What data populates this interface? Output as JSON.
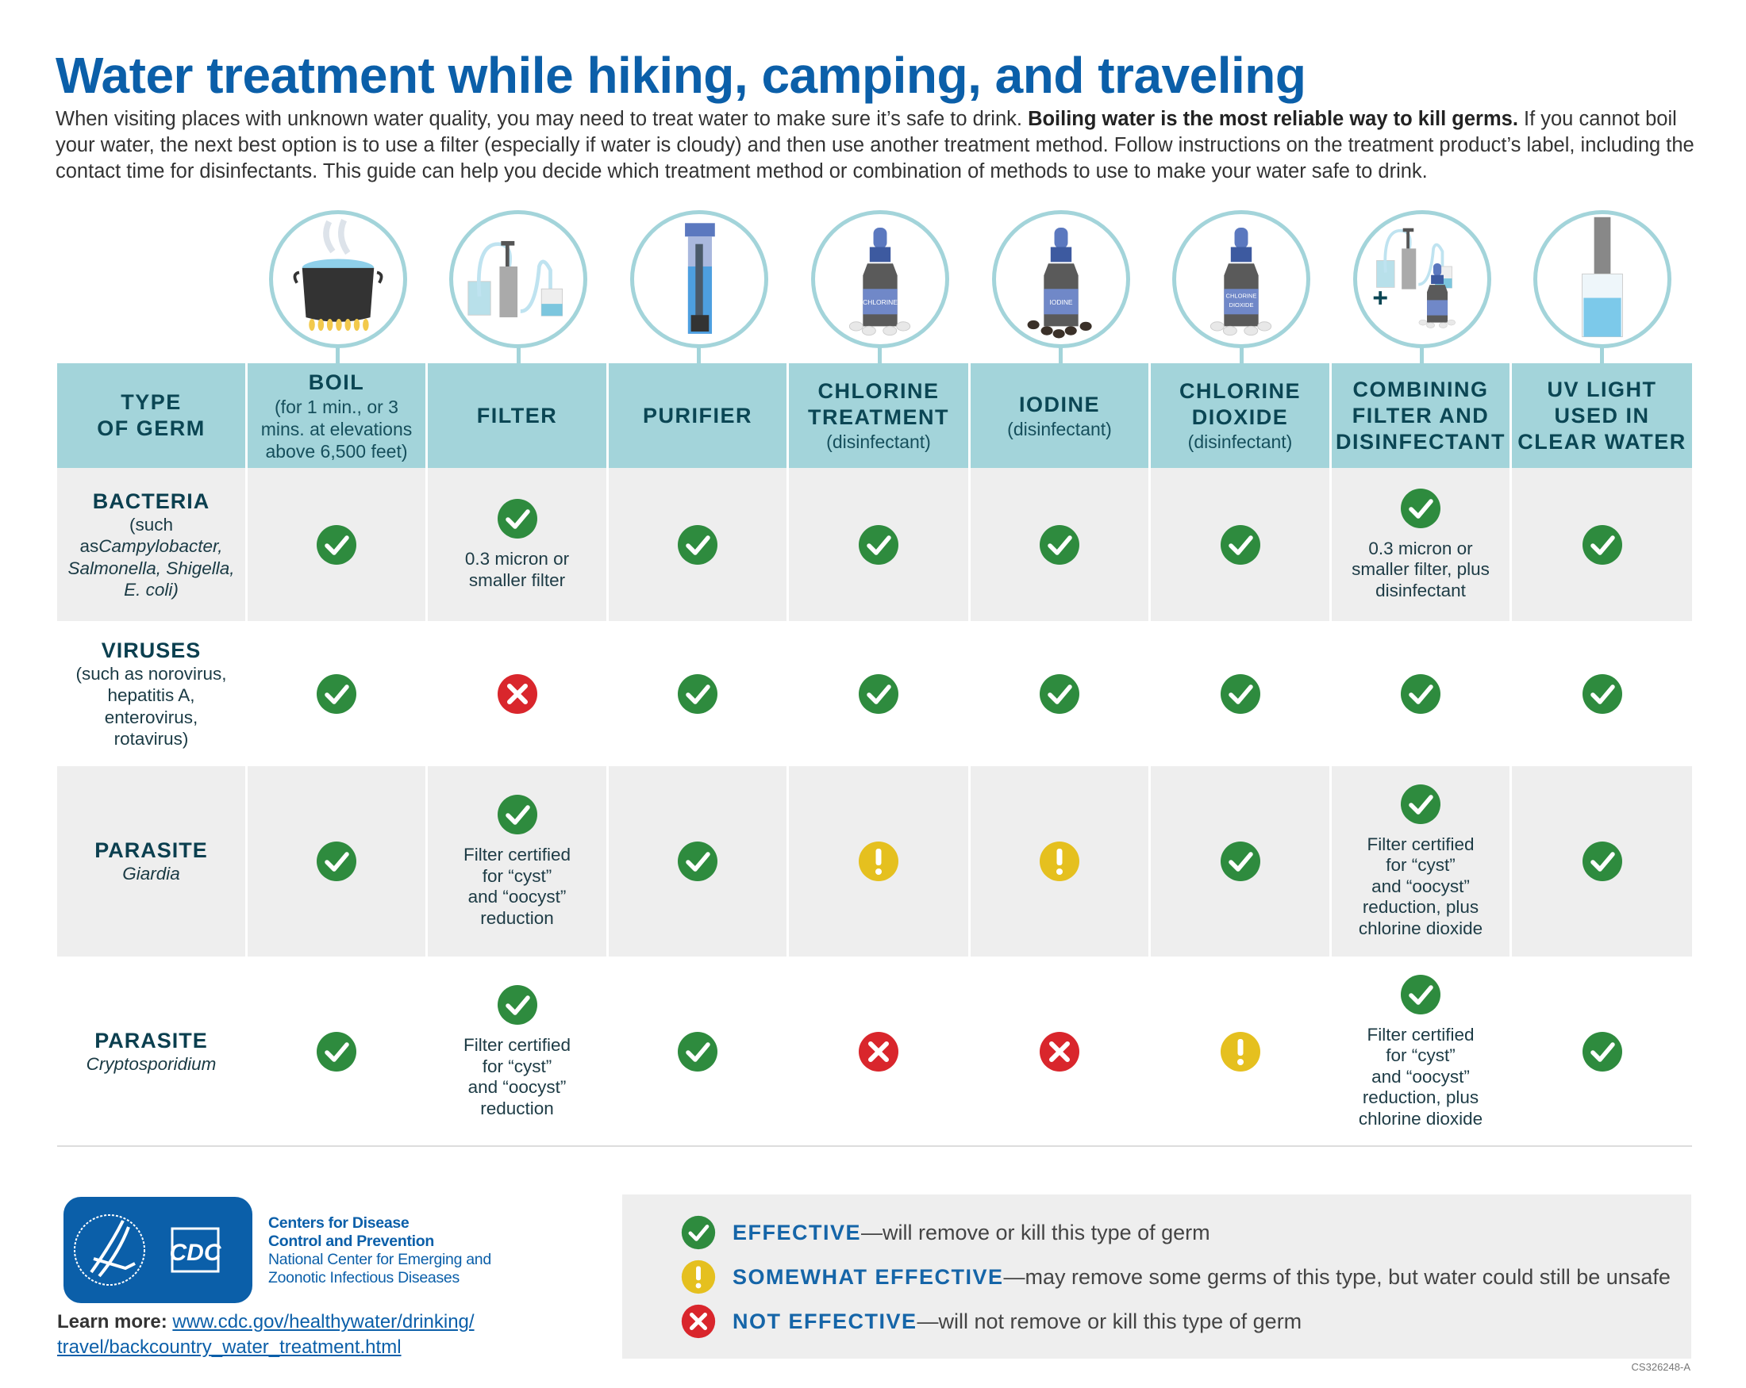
{
  "title": "Water treatment while hiking, camping, and traveling",
  "intro": {
    "text1": "When visiting places with unknown water quality, you may need to treat water to make sure it’s safe to drink. ",
    "bold": "Boiling water is the most reliable way to kill germs.",
    "text2": " If you cannot boil your water, the next best option is to use a filter (especially if water is cloudy) and then use another treatment method. Follow instructions on the treatment product’s label, including the contact time for disinfectants. This guide can help you decide which treatment method or combination of methods to use to make your water safe to drink."
  },
  "colors": {
    "title_blue": "#0b5fa9",
    "header_teal": "#a3d4da",
    "effective": "#2e8b3e",
    "somewhat": "#e5c01f",
    "not_effective": "#d9262c",
    "row_gray": "#eeeeee"
  },
  "bottle_labels": {
    "chlorine": "CHLORINE",
    "iodine": "IODINE",
    "chlorine_dioxide_1": "CHLORINE",
    "chlorine_dioxide_2": "DIOXIDE"
  },
  "header": {
    "germ_label": "TYPE\nOF GERM",
    "columns": [
      {
        "label": "BOIL",
        "sub": "(for 1 min., or 3\nmins. at elevations\nabove 6,500 feet)",
        "icon": "boiling-pot-icon"
      },
      {
        "label": "FILTER",
        "sub": "",
        "icon": "water-filter-pump-icon"
      },
      {
        "label": "PURIFIER",
        "sub": "",
        "icon": "purifier-bottle-icon"
      },
      {
        "label": "CHLORINE\nTREATMENT",
        "sub": "(disinfectant)",
        "icon": "chlorine-bottle-icon"
      },
      {
        "label": "IODINE",
        "sub": "(disinfectant)",
        "icon": "iodine-bottle-icon"
      },
      {
        "label": "CHLORINE\nDIOXIDE",
        "sub": "(disinfectant)",
        "icon": "chlorine-dioxide-bottle-icon"
      },
      {
        "label": "COMBINING\nFILTER AND\nDISINFECTANT",
        "sub": "",
        "icon": "filter-plus-disinfectant-icon"
      },
      {
        "label": "UV LIGHT\nUSED IN\nCLEAR WATER",
        "sub": "",
        "icon": "uv-light-glass-icon"
      }
    ]
  },
  "rows": [
    {
      "name": "BACTERIA",
      "sub_prefix": "(such as",
      "sub_italic": "Campylobacter,\nSalmonella, Shigella,\nE. coli)",
      "sub": "",
      "cells": [
        {
          "status": "effective",
          "note": ""
        },
        {
          "status": "effective",
          "note": "0.3 micron or\nsmaller filter"
        },
        {
          "status": "effective",
          "note": ""
        },
        {
          "status": "effective",
          "note": ""
        },
        {
          "status": "effective",
          "note": ""
        },
        {
          "status": "effective",
          "note": ""
        },
        {
          "status": "effective",
          "note": "0.3 micron or\nsmaller filter, plus\ndisinfectant"
        },
        {
          "status": "effective",
          "note": ""
        }
      ]
    },
    {
      "name": "VIRUSES",
      "sub_prefix": "",
      "sub_italic": "",
      "sub": "(such as norovirus,\nhepatitis A,\nenterovirus,\nrotavirus)",
      "cells": [
        {
          "status": "effective",
          "note": ""
        },
        {
          "status": "not_effective",
          "note": ""
        },
        {
          "status": "effective",
          "note": ""
        },
        {
          "status": "effective",
          "note": ""
        },
        {
          "status": "effective",
          "note": ""
        },
        {
          "status": "effective",
          "note": ""
        },
        {
          "status": "effective",
          "note": ""
        },
        {
          "status": "effective",
          "note": ""
        }
      ]
    },
    {
      "name": "PARASITE",
      "sub_prefix": "",
      "sub_italic": "Giardia",
      "sub": "",
      "cells": [
        {
          "status": "effective",
          "note": ""
        },
        {
          "status": "effective",
          "note": "Filter certified\nfor “cyst”\nand “oocyst”\nreduction"
        },
        {
          "status": "effective",
          "note": ""
        },
        {
          "status": "somewhat",
          "note": ""
        },
        {
          "status": "somewhat",
          "note": ""
        },
        {
          "status": "effective",
          "note": ""
        },
        {
          "status": "effective",
          "note": "Filter certified\nfor “cyst”\nand “oocyst”\nreduction, plus\nchlorine dioxide"
        },
        {
          "status": "effective",
          "note": ""
        }
      ]
    },
    {
      "name": "PARASITE",
      "sub_prefix": "",
      "sub_italic": "Cryptosporidium",
      "sub": "",
      "cells": [
        {
          "status": "effective",
          "note": ""
        },
        {
          "status": "effective",
          "note": "Filter certified\nfor “cyst”\nand “oocyst”\nreduction"
        },
        {
          "status": "effective",
          "note": ""
        },
        {
          "status": "not_effective",
          "note": ""
        },
        {
          "status": "not_effective",
          "note": ""
        },
        {
          "status": "somewhat",
          "note": ""
        },
        {
          "status": "effective",
          "note": "Filter certified\nfor “cyst”\nand “oocyst”\nreduction, plus\nchlorine dioxide"
        },
        {
          "status": "effective",
          "note": ""
        }
      ]
    }
  ],
  "footer": {
    "org_line1": "Centers for Disease",
    "org_line2": "Control and Prevention",
    "center_line1": "National Center for Emerging and",
    "center_line2": "Zoonotic Infectious Diseases",
    "logo_text": "CDC",
    "learn_label": "Learn more:",
    "learn_link_1": "www.cdc.gov/healthywater/drinking/",
    "learn_link_2": "travel/backcountry_water_treatment.html",
    "code": "CS326248-A"
  },
  "legend": [
    {
      "status": "effective",
      "label": "EFFECTIVE",
      "desc": "—will remove or kill this type of germ"
    },
    {
      "status": "somewhat",
      "label": "SOMEWHAT EFFECTIVE",
      "desc": "—may remove some germs of this type, but water could still be unsafe"
    },
    {
      "status": "not_effective",
      "label": "NOT EFFECTIVE",
      "desc": "—will not remove or kill this type of germ"
    }
  ]
}
